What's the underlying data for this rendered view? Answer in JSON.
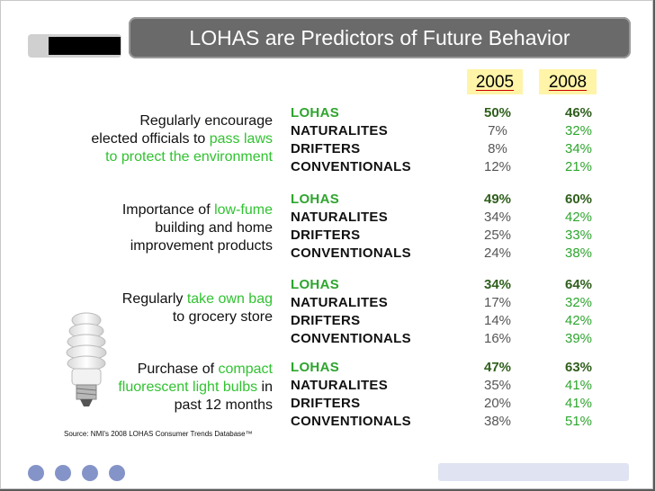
{
  "title": "LOHAS are Predictors of Future Behavior",
  "years": [
    "2005",
    "2008"
  ],
  "sections": [
    {
      "question_parts": [
        {
          "text": "Regularly encourage",
          "hl": false
        },
        {
          "text": "elected officials to ",
          "hl": false
        },
        {
          "text": "pass laws",
          "hl": true
        },
        {
          "text": "to protect the environment",
          "hl": true
        }
      ],
      "rows": [
        {
          "group": "LOHAS",
          "v2005": "50%",
          "v2008": "46%"
        },
        {
          "group": "NATURALITES",
          "v2005": "7%",
          "v2008": "32%"
        },
        {
          "group": "DRIFTERS",
          "v2005": "8%",
          "v2008": "34%"
        },
        {
          "group": "CONVENTIONALS",
          "v2005": "12%",
          "v2008": "21%"
        }
      ]
    },
    {
      "question_parts": [
        {
          "text": "Importance of ",
          "hl": false
        },
        {
          "text": "low-fume",
          "hl": true
        },
        {
          "text": "building and home",
          "hl": false
        },
        {
          "text": "improvement products",
          "hl": false
        }
      ],
      "rows": [
        {
          "group": "LOHAS",
          "v2005": "49%",
          "v2008": "60%"
        },
        {
          "group": "NATURALITES",
          "v2005": "34%",
          "v2008": "42%"
        },
        {
          "group": "DRIFTERS",
          "v2005": "25%",
          "v2008": "33%"
        },
        {
          "group": "CONVENTIONALS",
          "v2005": "24%",
          "v2008": "38%"
        }
      ]
    },
    {
      "question_parts": [
        {
          "text": "Regularly ",
          "hl": false
        },
        {
          "text": "take own bag",
          "hl": true
        },
        {
          "text": "to grocery store",
          "hl": false
        }
      ],
      "rows": [
        {
          "group": "LOHAS",
          "v2005": "34%",
          "v2008": "64%"
        },
        {
          "group": "NATURALITES",
          "v2005": "17%",
          "v2008": "32%"
        },
        {
          "group": "DRIFTERS",
          "v2005": "14%",
          "v2008": "42%"
        },
        {
          "group": "CONVENTIONALS",
          "v2005": "16%",
          "v2008": "39%"
        }
      ]
    },
    {
      "question_parts": [
        {
          "text": "Purchase of ",
          "hl": false
        },
        {
          "text": "compact",
          "hl": true
        },
        {
          "text": "fluorescent light bulbs",
          "hl": true
        },
        {
          "text": " in",
          "hl": false
        },
        {
          "text": "past 12 months",
          "hl": false
        }
      ],
      "rows": [
        {
          "group": "LOHAS",
          "v2005": "47%",
          "v2008": "63%"
        },
        {
          "group": "NATURALITES",
          "v2005": "35%",
          "v2008": "41%"
        },
        {
          "group": "DRIFTERS",
          "v2005": "20%",
          "v2008": "41%"
        },
        {
          "group": "CONVENTIONALS",
          "v2005": "38%",
          "v2008": "51%"
        }
      ]
    }
  ],
  "source": "Source: NMI's 2008 LOHAS Consumer Trends Database™",
  "icons": {
    "bulb": "cfl-bulb-icon",
    "nav_dots": "nav-dot-icon"
  },
  "colors": {
    "highlight": "#31c231",
    "title_bar": "#6a6a6a",
    "year_bg": "#fff4a8",
    "dot": "#8594c8"
  }
}
